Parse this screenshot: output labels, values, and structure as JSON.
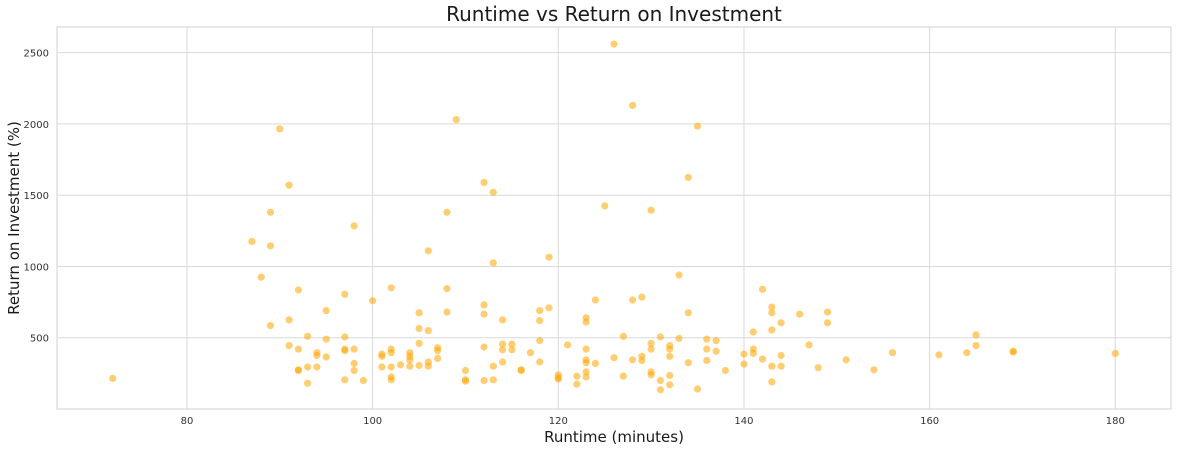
{
  "chart_data": {
    "type": "scatter",
    "title": "Runtime vs Return on Investment",
    "xlabel": "Runtime (minutes)",
    "ylabel": "Return on Investment (%)",
    "xlim": [
      66,
      186
    ],
    "ylim": [
      0,
      2680
    ],
    "xticks": [
      80,
      100,
      120,
      140,
      160,
      180
    ],
    "yticks": [
      500,
      1000,
      1500,
      2000,
      2500
    ],
    "grid": true,
    "marker_color": "#ffa500",
    "marker_alpha": 0.55,
    "points": [
      [
        72,
        215
      ],
      [
        87,
        1175
      ],
      [
        88,
        925
      ],
      [
        89,
        1380
      ],
      [
        89,
        1145
      ],
      [
        89,
        585
      ],
      [
        90,
        1965
      ],
      [
        91,
        1570
      ],
      [
        91,
        625
      ],
      [
        91,
        445
      ],
      [
        92,
        835
      ],
      [
        92,
        420
      ],
      [
        92,
        275
      ],
      [
        92,
        270
      ],
      [
        93,
        510
      ],
      [
        93,
        295
      ],
      [
        93,
        180
      ],
      [
        94,
        395
      ],
      [
        94,
        375
      ],
      [
        94,
        295
      ],
      [
        95,
        690
      ],
      [
        95,
        490
      ],
      [
        95,
        365
      ],
      [
        97,
        805
      ],
      [
        97,
        505
      ],
      [
        97,
        420
      ],
      [
        97,
        410
      ],
      [
        97,
        205
      ],
      [
        98,
        1285
      ],
      [
        98,
        420
      ],
      [
        98,
        320
      ],
      [
        98,
        270
      ],
      [
        99,
        200
      ],
      [
        100,
        760
      ],
      [
        101,
        385
      ],
      [
        101,
        370
      ],
      [
        101,
        295
      ],
      [
        102,
        850
      ],
      [
        102,
        420
      ],
      [
        102,
        395
      ],
      [
        102,
        295
      ],
      [
        102,
        225
      ],
      [
        102,
        205
      ],
      [
        103,
        310
      ],
      [
        104,
        395
      ],
      [
        104,
        370
      ],
      [
        104,
        345
      ],
      [
        104,
        300
      ],
      [
        105,
        675
      ],
      [
        105,
        565
      ],
      [
        105,
        460
      ],
      [
        105,
        305
      ],
      [
        106,
        1110
      ],
      [
        106,
        550
      ],
      [
        106,
        330
      ],
      [
        106,
        300
      ],
      [
        107,
        430
      ],
      [
        107,
        410
      ],
      [
        107,
        355
      ],
      [
        108,
        1380
      ],
      [
        108,
        845
      ],
      [
        108,
        680
      ],
      [
        109,
        2030
      ],
      [
        110,
        270
      ],
      [
        110,
        205
      ],
      [
        110,
        195
      ],
      [
        112,
        1590
      ],
      [
        112,
        730
      ],
      [
        112,
        665
      ],
      [
        112,
        435
      ],
      [
        112,
        200
      ],
      [
        113,
        1520
      ],
      [
        113,
        1025
      ],
      [
        113,
        300
      ],
      [
        113,
        205
      ],
      [
        114,
        625
      ],
      [
        114,
        455
      ],
      [
        114,
        415
      ],
      [
        114,
        330
      ],
      [
        115,
        455
      ],
      [
        115,
        415
      ],
      [
        116,
        275
      ],
      [
        116,
        270
      ],
      [
        117,
        395
      ],
      [
        118,
        690
      ],
      [
        118,
        620
      ],
      [
        118,
        480
      ],
      [
        118,
        330
      ],
      [
        119,
        1065
      ],
      [
        119,
        710
      ],
      [
        120,
        240
      ],
      [
        120,
        220
      ],
      [
        120,
        210
      ],
      [
        121,
        450
      ],
      [
        122,
        230
      ],
      [
        122,
        175
      ],
      [
        123,
        640
      ],
      [
        123,
        610
      ],
      [
        123,
        420
      ],
      [
        123,
        345
      ],
      [
        123,
        325
      ],
      [
        123,
        260
      ],
      [
        123,
        225
      ],
      [
        124,
        765
      ],
      [
        124,
        320
      ],
      [
        125,
        1425
      ],
      [
        126,
        2560
      ],
      [
        126,
        360
      ],
      [
        127,
        510
      ],
      [
        127,
        230
      ],
      [
        128,
        2130
      ],
      [
        128,
        765
      ],
      [
        128,
        345
      ],
      [
        129,
        785
      ],
      [
        129,
        370
      ],
      [
        129,
        340
      ],
      [
        130,
        1395
      ],
      [
        130,
        460
      ],
      [
        130,
        420
      ],
      [
        130,
        260
      ],
      [
        130,
        240
      ],
      [
        131,
        505
      ],
      [
        131,
        200
      ],
      [
        131,
        135
      ],
      [
        132,
        445
      ],
      [
        132,
        420
      ],
      [
        132,
        370
      ],
      [
        132,
        235
      ],
      [
        132,
        170
      ],
      [
        133,
        940
      ],
      [
        133,
        495
      ],
      [
        134,
        1625
      ],
      [
        134,
        675
      ],
      [
        134,
        325
      ],
      [
        135,
        1985
      ],
      [
        135,
        140
      ],
      [
        136,
        490
      ],
      [
        136,
        420
      ],
      [
        136,
        340
      ],
      [
        137,
        480
      ],
      [
        137,
        405
      ],
      [
        138,
        270
      ],
      [
        140,
        385
      ],
      [
        140,
        315
      ],
      [
        141,
        540
      ],
      [
        141,
        420
      ],
      [
        141,
        390
      ],
      [
        142,
        840
      ],
      [
        142,
        350
      ],
      [
        143,
        715
      ],
      [
        143,
        675
      ],
      [
        143,
        555
      ],
      [
        143,
        300
      ],
      [
        143,
        190
      ],
      [
        144,
        605
      ],
      [
        144,
        375
      ],
      [
        144,
        300
      ],
      [
        146,
        665
      ],
      [
        147,
        450
      ],
      [
        148,
        290
      ],
      [
        149,
        680
      ],
      [
        149,
        605
      ],
      [
        151,
        345
      ],
      [
        154,
        275
      ],
      [
        156,
        395
      ],
      [
        161,
        380
      ],
      [
        164,
        395
      ],
      [
        165,
        520
      ],
      [
        165,
        445
      ],
      [
        169,
        400
      ],
      [
        169,
        405
      ],
      [
        180,
        390
      ]
    ]
  }
}
